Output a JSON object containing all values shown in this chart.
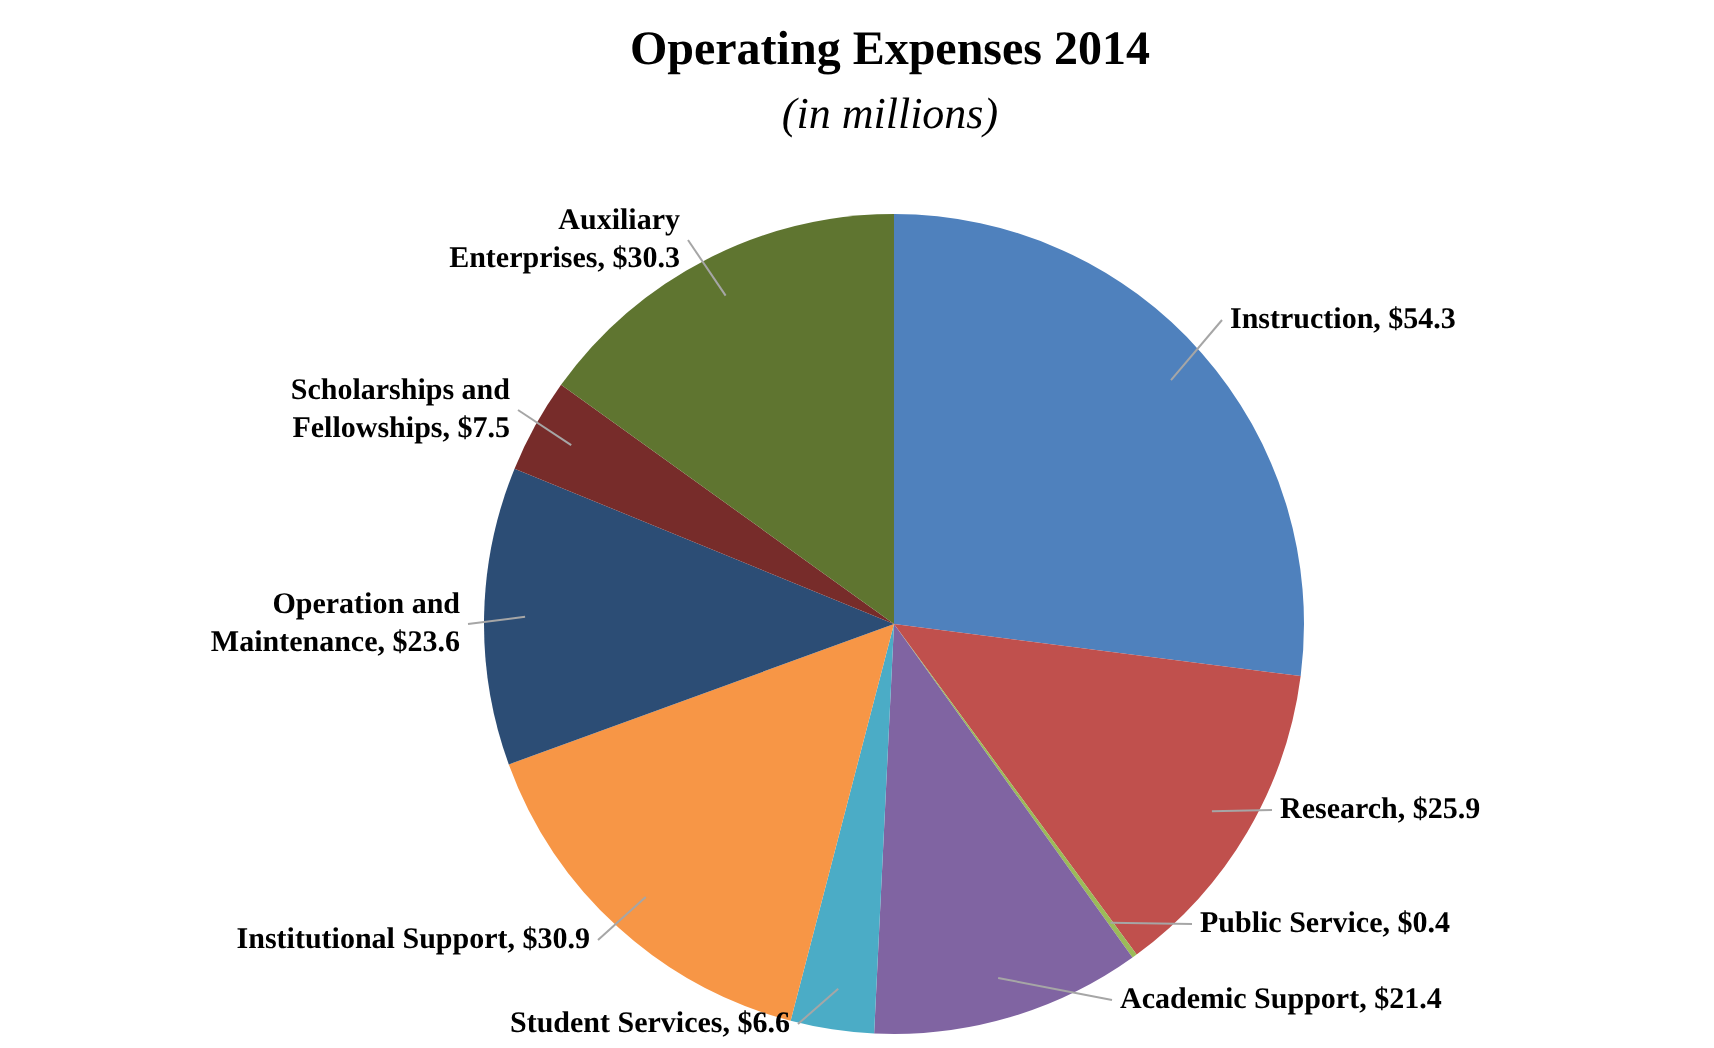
{
  "chart_data": {
    "type": "pie",
    "title": "Operating Expenses 2014",
    "subtitle": "(in millions)",
    "categories": [
      "Instruction",
      "Research",
      "Public Service",
      "Academic Support",
      "Student Services",
      "Institutional Support",
      "Operation and Maintenance",
      "Scholarships and Fellowships",
      "Auxiliary Enterprises"
    ],
    "values": [
      54.3,
      25.9,
      0.4,
      21.4,
      6.6,
      30.9,
      23.6,
      7.5,
      30.3
    ],
    "colors": [
      "#4f81bd",
      "#c0504d",
      "#9bbb59",
      "#8064a2",
      "#4bacc6",
      "#f79646",
      "#2c4d75",
      "#772c2a",
      "#5f7530"
    ],
    "value_labels": [
      "$54.3",
      "$25.9",
      "$0.4",
      "$21.4",
      "$6.6",
      "$30.9",
      "$23.6",
      "$7.5",
      "$30.3"
    ]
  }
}
